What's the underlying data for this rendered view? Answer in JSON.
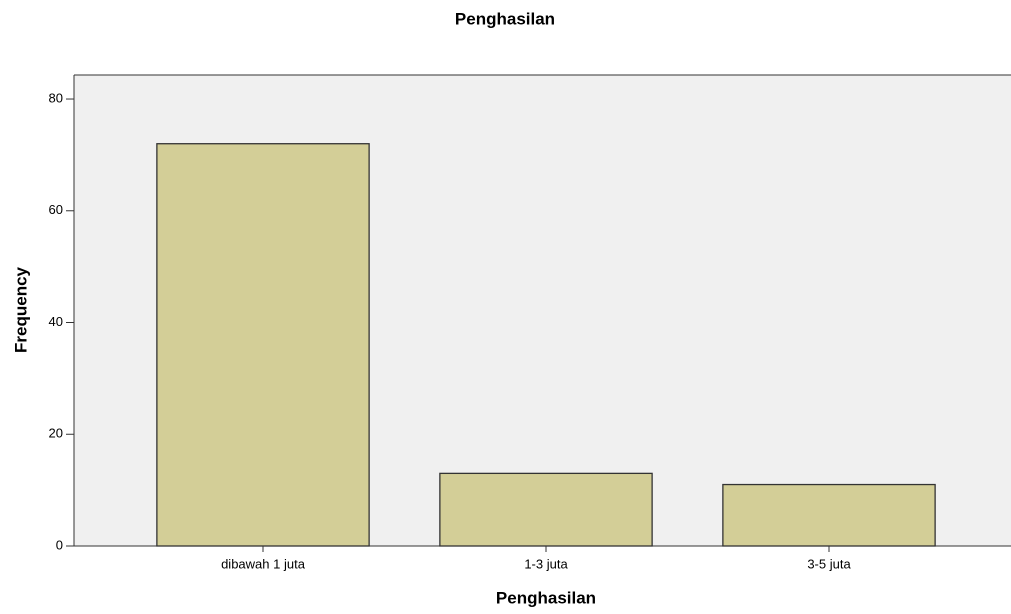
{
  "chart_data": {
    "type": "bar",
    "title": "Penghasilan",
    "x_label": "Penghasilan",
    "y_label": "Frequency",
    "categories": [
      "dibawah 1 juta",
      "1-3 juta",
      "3-5 juta"
    ],
    "values": [
      72,
      13,
      11
    ],
    "color": "#d3ce97",
    "ylim": [
      0,
      84.3
    ],
    "yticks": [
      0,
      20,
      40,
      60,
      80
    ]
  }
}
